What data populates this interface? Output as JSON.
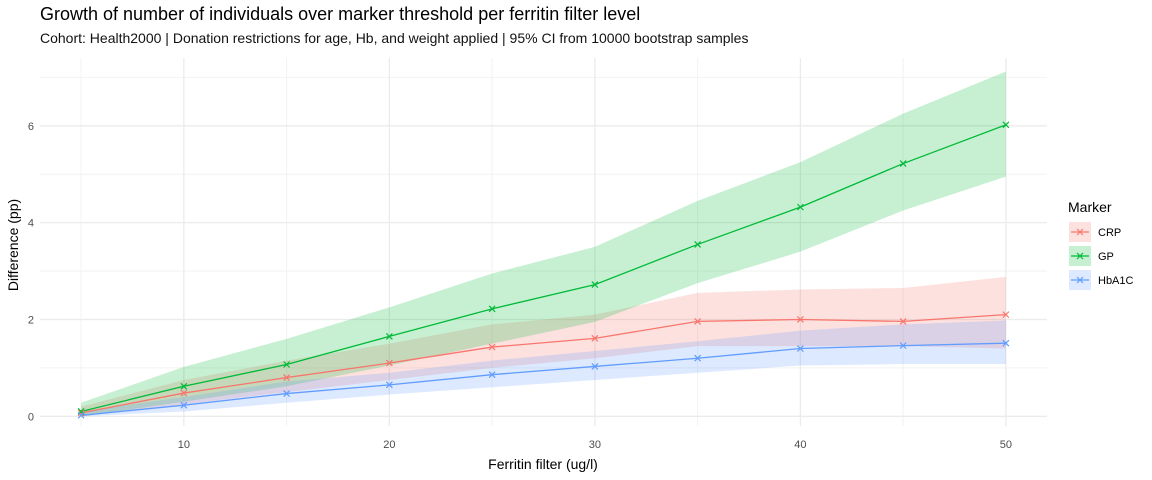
{
  "chart_data": {
    "type": "line",
    "title": "Growth of number of individuals over marker threshold per ferritin filter level",
    "subtitle": "Cohort: Health2000 | Donation restrictions for age, Hb, and weight applied | 95% CI from 10000 bootstrap samples",
    "xlabel": "Ferritin filter (ug/l)",
    "ylabel": "Difference (pp)",
    "x": [
      5,
      10,
      15,
      20,
      25,
      30,
      35,
      40,
      45,
      50
    ],
    "xlim": [
      3,
      52
    ],
    "ylim": [
      -0.2,
      7.4
    ],
    "xticks": [
      10,
      20,
      30,
      40,
      50
    ],
    "yticks": [
      0,
      2,
      4,
      6
    ],
    "grid": true,
    "legend": {
      "title": "Marker",
      "position": "right"
    },
    "series": [
      {
        "name": "CRP",
        "color": "#F8766D",
        "fill": "#F8766D",
        "values": [
          0.07,
          0.48,
          0.8,
          1.1,
          1.43,
          1.61,
          1.96,
          2.0,
          1.96,
          2.1
        ],
        "lower": [
          0.0,
          0.25,
          0.5,
          0.75,
          1.0,
          1.2,
          1.45,
          1.45,
          1.45,
          1.4
        ],
        "upper": [
          0.2,
          0.75,
          1.15,
          1.5,
          1.9,
          2.1,
          2.55,
          2.62,
          2.65,
          2.88
        ]
      },
      {
        "name": "GP",
        "color": "#00BA38",
        "fill": "#00BA38",
        "values": [
          0.1,
          0.62,
          1.07,
          1.65,
          2.22,
          2.72,
          3.55,
          4.32,
          5.22,
          6.02
        ],
        "lower": [
          0.0,
          0.3,
          0.62,
          1.05,
          1.5,
          1.95,
          2.75,
          3.4,
          4.25,
          4.95
        ],
        "upper": [
          0.28,
          1.02,
          1.6,
          2.25,
          2.95,
          3.5,
          4.45,
          5.25,
          6.25,
          7.12
        ]
      },
      {
        "name": "HbA1C",
        "color": "#619CFF",
        "fill": "#619CFF",
        "values": [
          0.02,
          0.23,
          0.47,
          0.65,
          0.86,
          1.03,
          1.2,
          1.4,
          1.46,
          1.51
        ],
        "lower": [
          0.0,
          0.1,
          0.28,
          0.45,
          0.6,
          0.75,
          0.9,
          1.05,
          1.08,
          1.08
        ],
        "upper": [
          0.1,
          0.4,
          0.72,
          0.9,
          1.15,
          1.35,
          1.55,
          1.77,
          1.9,
          1.98
        ]
      }
    ]
  }
}
